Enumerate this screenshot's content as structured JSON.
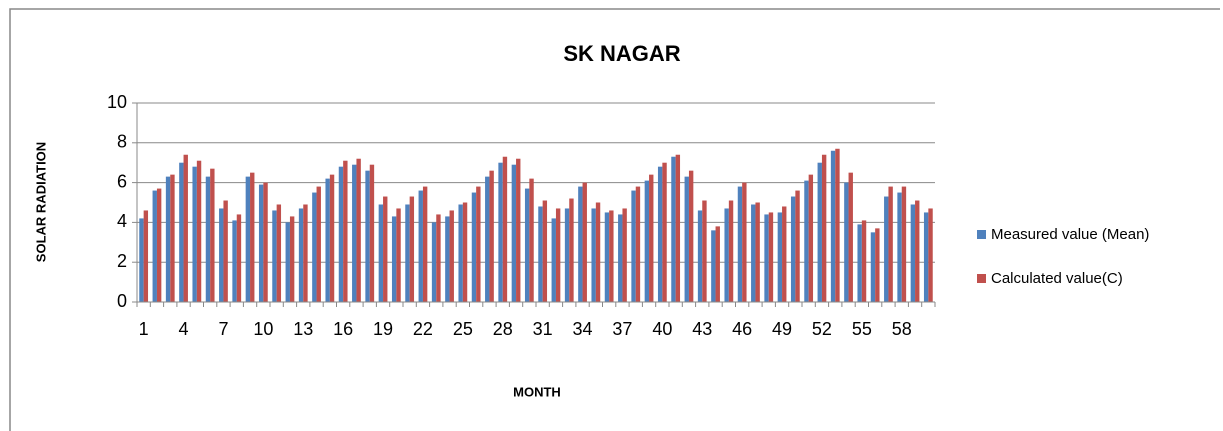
{
  "chart_data": {
    "type": "bar",
    "title": "SK NAGAR",
    "x_label": "MONTH",
    "y_label": "SOLAR RADIATION",
    "categories": [
      "1",
      null,
      null,
      "4",
      null,
      null,
      "7",
      null,
      null,
      "10",
      null,
      null,
      "13",
      null,
      null,
      "16",
      null,
      null,
      "19",
      null,
      null,
      "22",
      null,
      null,
      "25",
      null,
      null,
      "28",
      null,
      null,
      "31",
      null,
      null,
      "34",
      null,
      null,
      "37",
      null,
      null,
      "40",
      null,
      null,
      "43",
      null,
      null,
      "46",
      null,
      null,
      "49",
      null,
      null,
      "52",
      null,
      null,
      "55",
      null,
      null,
      "58",
      null,
      null
    ],
    "series": [
      {
        "name": "Measured value (Mean)",
        "color": "#4f81bd",
        "values": [
          4.2,
          5.6,
          6.3,
          7.0,
          6.8,
          6.3,
          4.7,
          4.1,
          6.3,
          5.9,
          4.6,
          4.0,
          4.7,
          5.5,
          6.2,
          6.8,
          6.9,
          6.6,
          4.9,
          4.3,
          4.9,
          5.6,
          4.0,
          4.3,
          4.9,
          5.5,
          6.3,
          7.0,
          6.9,
          5.7,
          4.8,
          4.2,
          4.7,
          5.8,
          4.7,
          4.5,
          4.4,
          5.6,
          6.1,
          6.8,
          7.3,
          6.3,
          4.6,
          3.6,
          4.7,
          5.8,
          4.9,
          4.4,
          4.5,
          5.3,
          6.1,
          7.0,
          7.6,
          6.0,
          3.9,
          3.5,
          5.3,
          5.5,
          4.9,
          4.5
        ]
      },
      {
        "name": "Calculated value(C)",
        "color": "#c0504d",
        "values": [
          4.6,
          5.7,
          6.4,
          7.4,
          7.1,
          6.7,
          5.1,
          4.4,
          6.5,
          6.0,
          4.9,
          4.3,
          4.9,
          5.8,
          6.4,
          7.1,
          7.2,
          6.9,
          5.3,
          4.7,
          5.3,
          5.8,
          4.4,
          4.6,
          5.0,
          5.8,
          6.6,
          7.3,
          7.2,
          6.2,
          5.1,
          4.7,
          5.2,
          6.0,
          5.0,
          4.6,
          4.7,
          5.8,
          6.4,
          7.0,
          7.4,
          6.6,
          5.1,
          3.8,
          5.1,
          6.0,
          5.0,
          4.5,
          4.8,
          5.6,
          6.4,
          7.4,
          7.7,
          6.5,
          4.1,
          3.7,
          5.8,
          5.8,
          5.1,
          4.7
        ]
      }
    ],
    "ylim": [
      0,
      10
    ],
    "yticks": [
      0,
      2,
      4,
      6,
      8,
      10
    ],
    "grid": true,
    "legend": "right"
  }
}
